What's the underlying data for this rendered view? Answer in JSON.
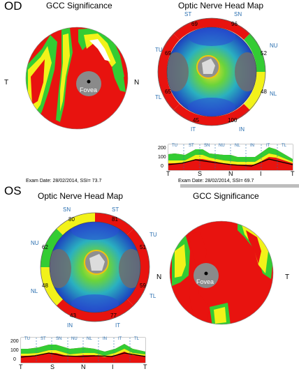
{
  "od": {
    "eye_label": "OD",
    "gcc_title": "GCC Significance",
    "onh_title": "Optic Nerve Head Map",
    "fovea_label": "Fovea",
    "gcc_side_left": "T",
    "gcc_side_right": "N",
    "onh_sectors": [
      "ST",
      "SN",
      "TU",
      "NU",
      "TL",
      "NL",
      "IT",
      "IN"
    ],
    "onh_values": [
      "69",
      "96",
      "52",
      "48",
      "65",
      "69",
      "45",
      "100"
    ],
    "chart_ticks": [
      "200",
      "100",
      "0"
    ],
    "chart_sector_labels": [
      "TU",
      "ST",
      "SN",
      "NU",
      "NL",
      "IN",
      "IT",
      "TL"
    ],
    "chart_axis_labels": [
      "T",
      "S",
      "N",
      "I",
      "T"
    ],
    "exam_left": "Exam Date: 28/02/2014, SSI= 73.7",
    "exam_right": "Exam Date: 28/02/2014, SSI= 69.7"
  },
  "os": {
    "eye_label": "OS",
    "onh_title": "Optic Nerve Head Map",
    "gcc_title": "GCC Significance",
    "fovea_label": "Fovea",
    "onh_sectors": [
      "SN",
      "ST",
      "NU",
      "TU",
      "NL",
      "TL",
      "IN",
      "IT"
    ],
    "onh_values": [
      "80",
      "81",
      "62",
      "51",
      "48",
      "59",
      "43",
      "77"
    ],
    "onh_side_right": "N",
    "gcc_side_right": "T",
    "chart_ticks": [
      "200",
      "100",
      "0"
    ],
    "chart_sector_labels": [
      "TU",
      "ST",
      "SN",
      "NU",
      "NL",
      "IN",
      "IT",
      "TL"
    ],
    "chart_axis_labels": [
      "T",
      "S",
      "N",
      "I",
      "T"
    ]
  },
  "colors": {
    "red": "#e8130f",
    "yellow": "#f2f21a",
    "green": "#33cc33",
    "blue_label": "#2a6fb0"
  }
}
